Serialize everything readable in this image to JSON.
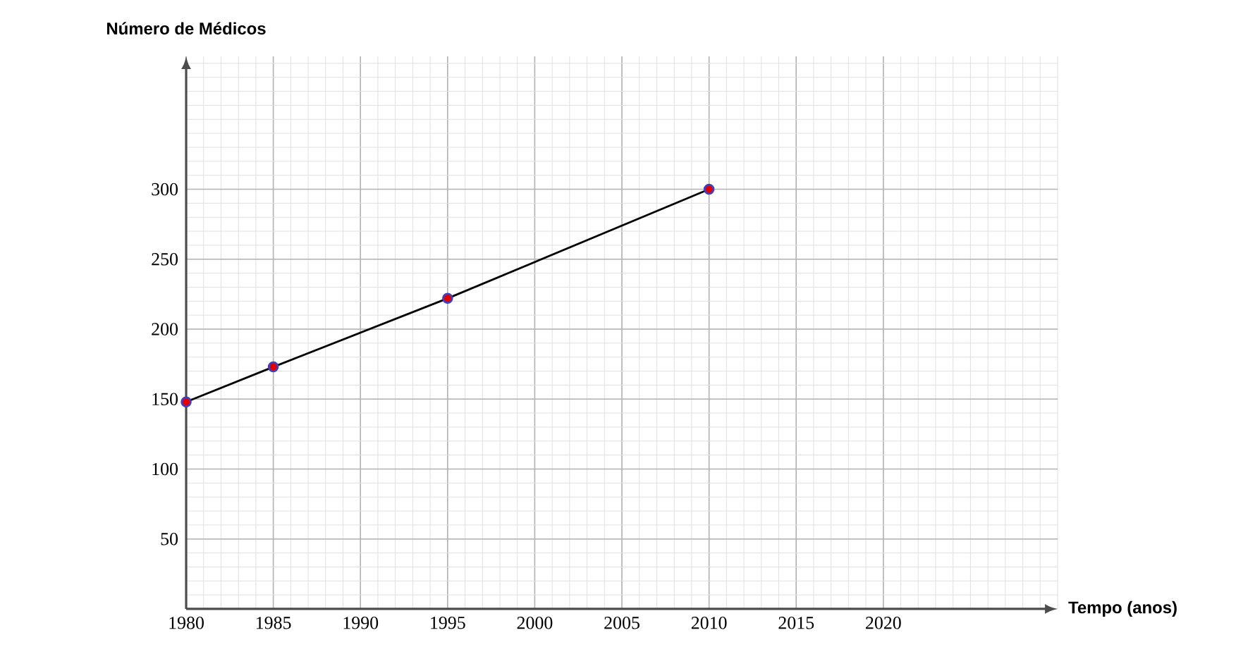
{
  "chart_data": {
    "type": "line",
    "xlabel": "Tempo (anos)",
    "ylabel": "Número de Médicos",
    "x": [
      1980,
      1985,
      1995,
      2010
    ],
    "series": [
      {
        "color": "#000000",
        "values": [
          148,
          173,
          222,
          300
        ]
      }
    ],
    "xlim": [
      1980,
      2030
    ],
    "ylim": [
      0,
      395
    ],
    "xticks": [
      1980,
      1985,
      1990,
      1995,
      2000,
      2005,
      2010,
      2015,
      2020
    ],
    "yticks": [
      50,
      100,
      150,
      200,
      250,
      300
    ],
    "grid": true,
    "marker": "circle",
    "line_style": "solid"
  }
}
